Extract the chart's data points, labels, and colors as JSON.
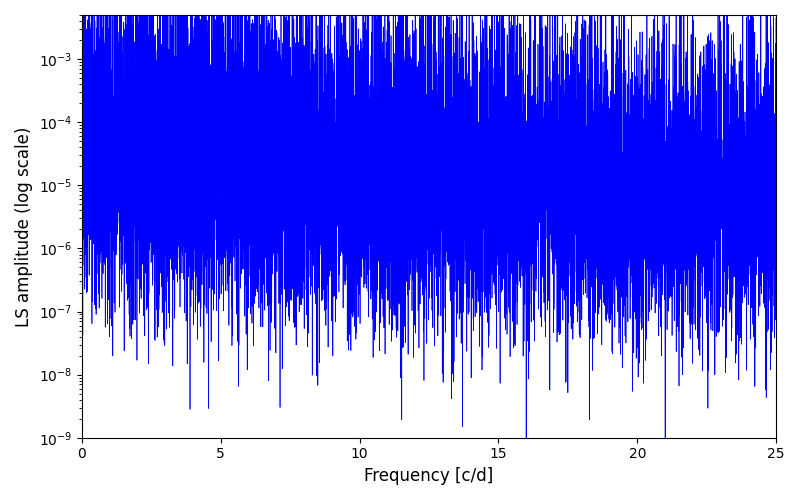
{
  "title": "",
  "xlabel": "Frequency [c/d]",
  "ylabel": "LS amplitude (log scale)",
  "line_color": "#0000FF",
  "line_width": 0.5,
  "xlim": [
    0,
    25
  ],
  "ylim": [
    1e-09,
    0.005
  ],
  "xticks": [
    0,
    5,
    10,
    15,
    20,
    25
  ],
  "figsize": [
    8.0,
    5.0
  ],
  "dpi": 100,
  "seed": 12345,
  "n_points": 5000,
  "freq_max": 25.0,
  "background_color": "#ffffff",
  "null_freq_1": 16.0,
  "null_freq_2": 21.0
}
